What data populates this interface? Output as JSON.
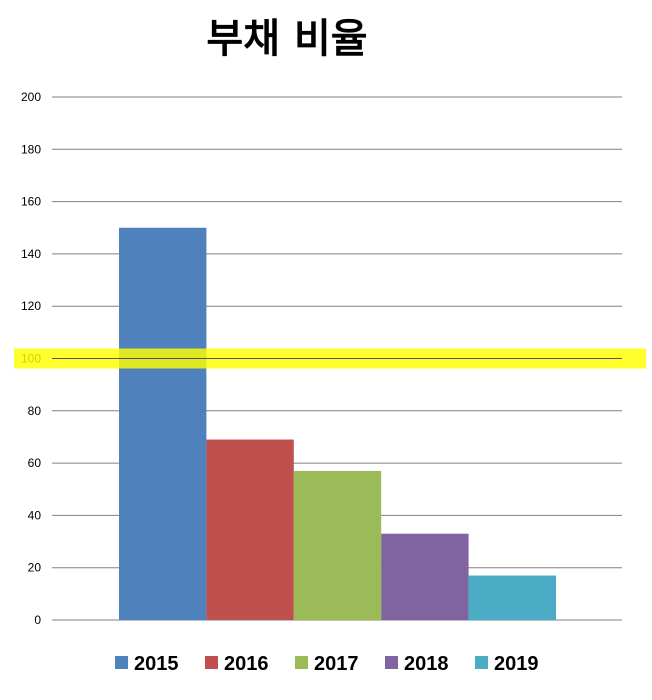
{
  "chart_data": {
    "type": "bar",
    "title": "부채 비율",
    "xlabel": "",
    "ylabel": "",
    "ylim": [
      0,
      200
    ],
    "yticks": [
      0,
      20,
      40,
      60,
      80,
      100,
      120,
      140,
      160,
      180,
      200
    ],
    "grid": true,
    "legend_position": "bottom",
    "series": [
      {
        "name": "2015",
        "value": 150,
        "color": "#4f81bd"
      },
      {
        "name": "2016",
        "value": 69,
        "color": "#c0504d"
      },
      {
        "name": "2017",
        "value": 57,
        "color": "#9bbb59"
      },
      {
        "name": "2018",
        "value": 33,
        "color": "#8064a2"
      },
      {
        "name": "2019",
        "value": 17,
        "color": "#4bacc6"
      }
    ],
    "highlight": {
      "y": 100,
      "color": "#ffff00"
    }
  }
}
